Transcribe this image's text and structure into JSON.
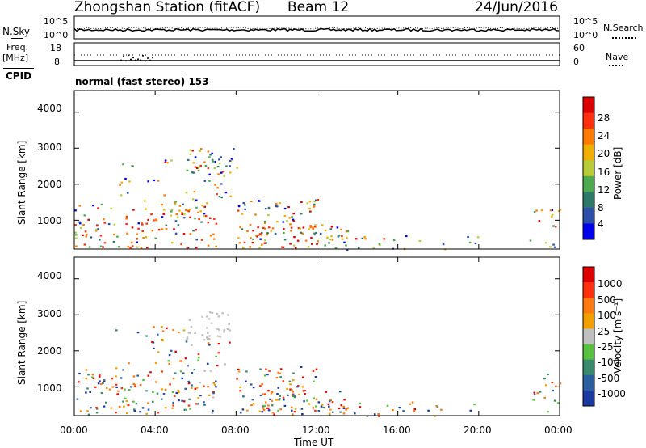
{
  "header": {
    "station": "Zhongshan Station (fitACF)",
    "beam": "Beam 12",
    "date": "24/Jun/2016"
  },
  "top_panels": {
    "nsky_label": "N.Sky",
    "nsky_ticks": [
      "10^5",
      "10^0"
    ],
    "nsearch_label": "N.Search",
    "nsearch_ticks": [
      "10^5",
      "10^0"
    ],
    "freq_label": "Freq.",
    "freq_unit": "[MHz]",
    "freq_ticks": [
      "18",
      "8"
    ],
    "nave_label": "Nave",
    "nave_ticks": [
      "60",
      "0"
    ],
    "cpid_label": "CPID",
    "cpid_value": "normal (fast stereo) 153"
  },
  "colors": {
    "power": [
      "#0000ee",
      "#2d4fa8",
      "#2e7a6a",
      "#4faa4f",
      "#b8cc3a",
      "#f0b000",
      "#ff7a00",
      "#ff3010",
      "#dd0000"
    ],
    "velocity": [
      "#1a3aa0",
      "#2c5fa0",
      "#3a8a6e",
      "#58c040",
      "#c0c0c0",
      "#f0a000",
      "#ff7a10",
      "#ff3010",
      "#e00000"
    ]
  },
  "chart_data": [
    {
      "type": "heatmap",
      "name": "power",
      "ylabel": "Slant Range [km]",
      "y_ticks": [
        "4000",
        "3000",
        "2000",
        "1000"
      ],
      "x_ticks": [
        "00:00",
        "04:00",
        "08:00",
        "12:00",
        "16:00",
        "20:00",
        "00:00"
      ],
      "ylim": [
        200,
        4600
      ],
      "xlim": [
        0,
        24
      ],
      "colorbar_label": "Power [dB]",
      "colorbar_ticks": [
        "28",
        "24",
        "20",
        "16",
        "12",
        "8",
        "4"
      ]
    },
    {
      "type": "heatmap",
      "name": "velocity",
      "ylabel": "Slant Range [km]",
      "y_ticks": [
        "4000",
        "3000",
        "2000",
        "1000"
      ],
      "x_ticks": [
        "00:00",
        "04:00",
        "08:00",
        "12:00",
        "16:00",
        "20:00",
        "00:00"
      ],
      "xlabel": "Time UT",
      "ylim": [
        200,
        4600
      ],
      "xlim": [
        0,
        24
      ],
      "colorbar_label": "Velocity [m s⁻¹]",
      "colorbar_ticks": [
        "1000",
        "500",
        "100",
        "25",
        "-25",
        "-100",
        "-500",
        "-1000"
      ]
    }
  ]
}
